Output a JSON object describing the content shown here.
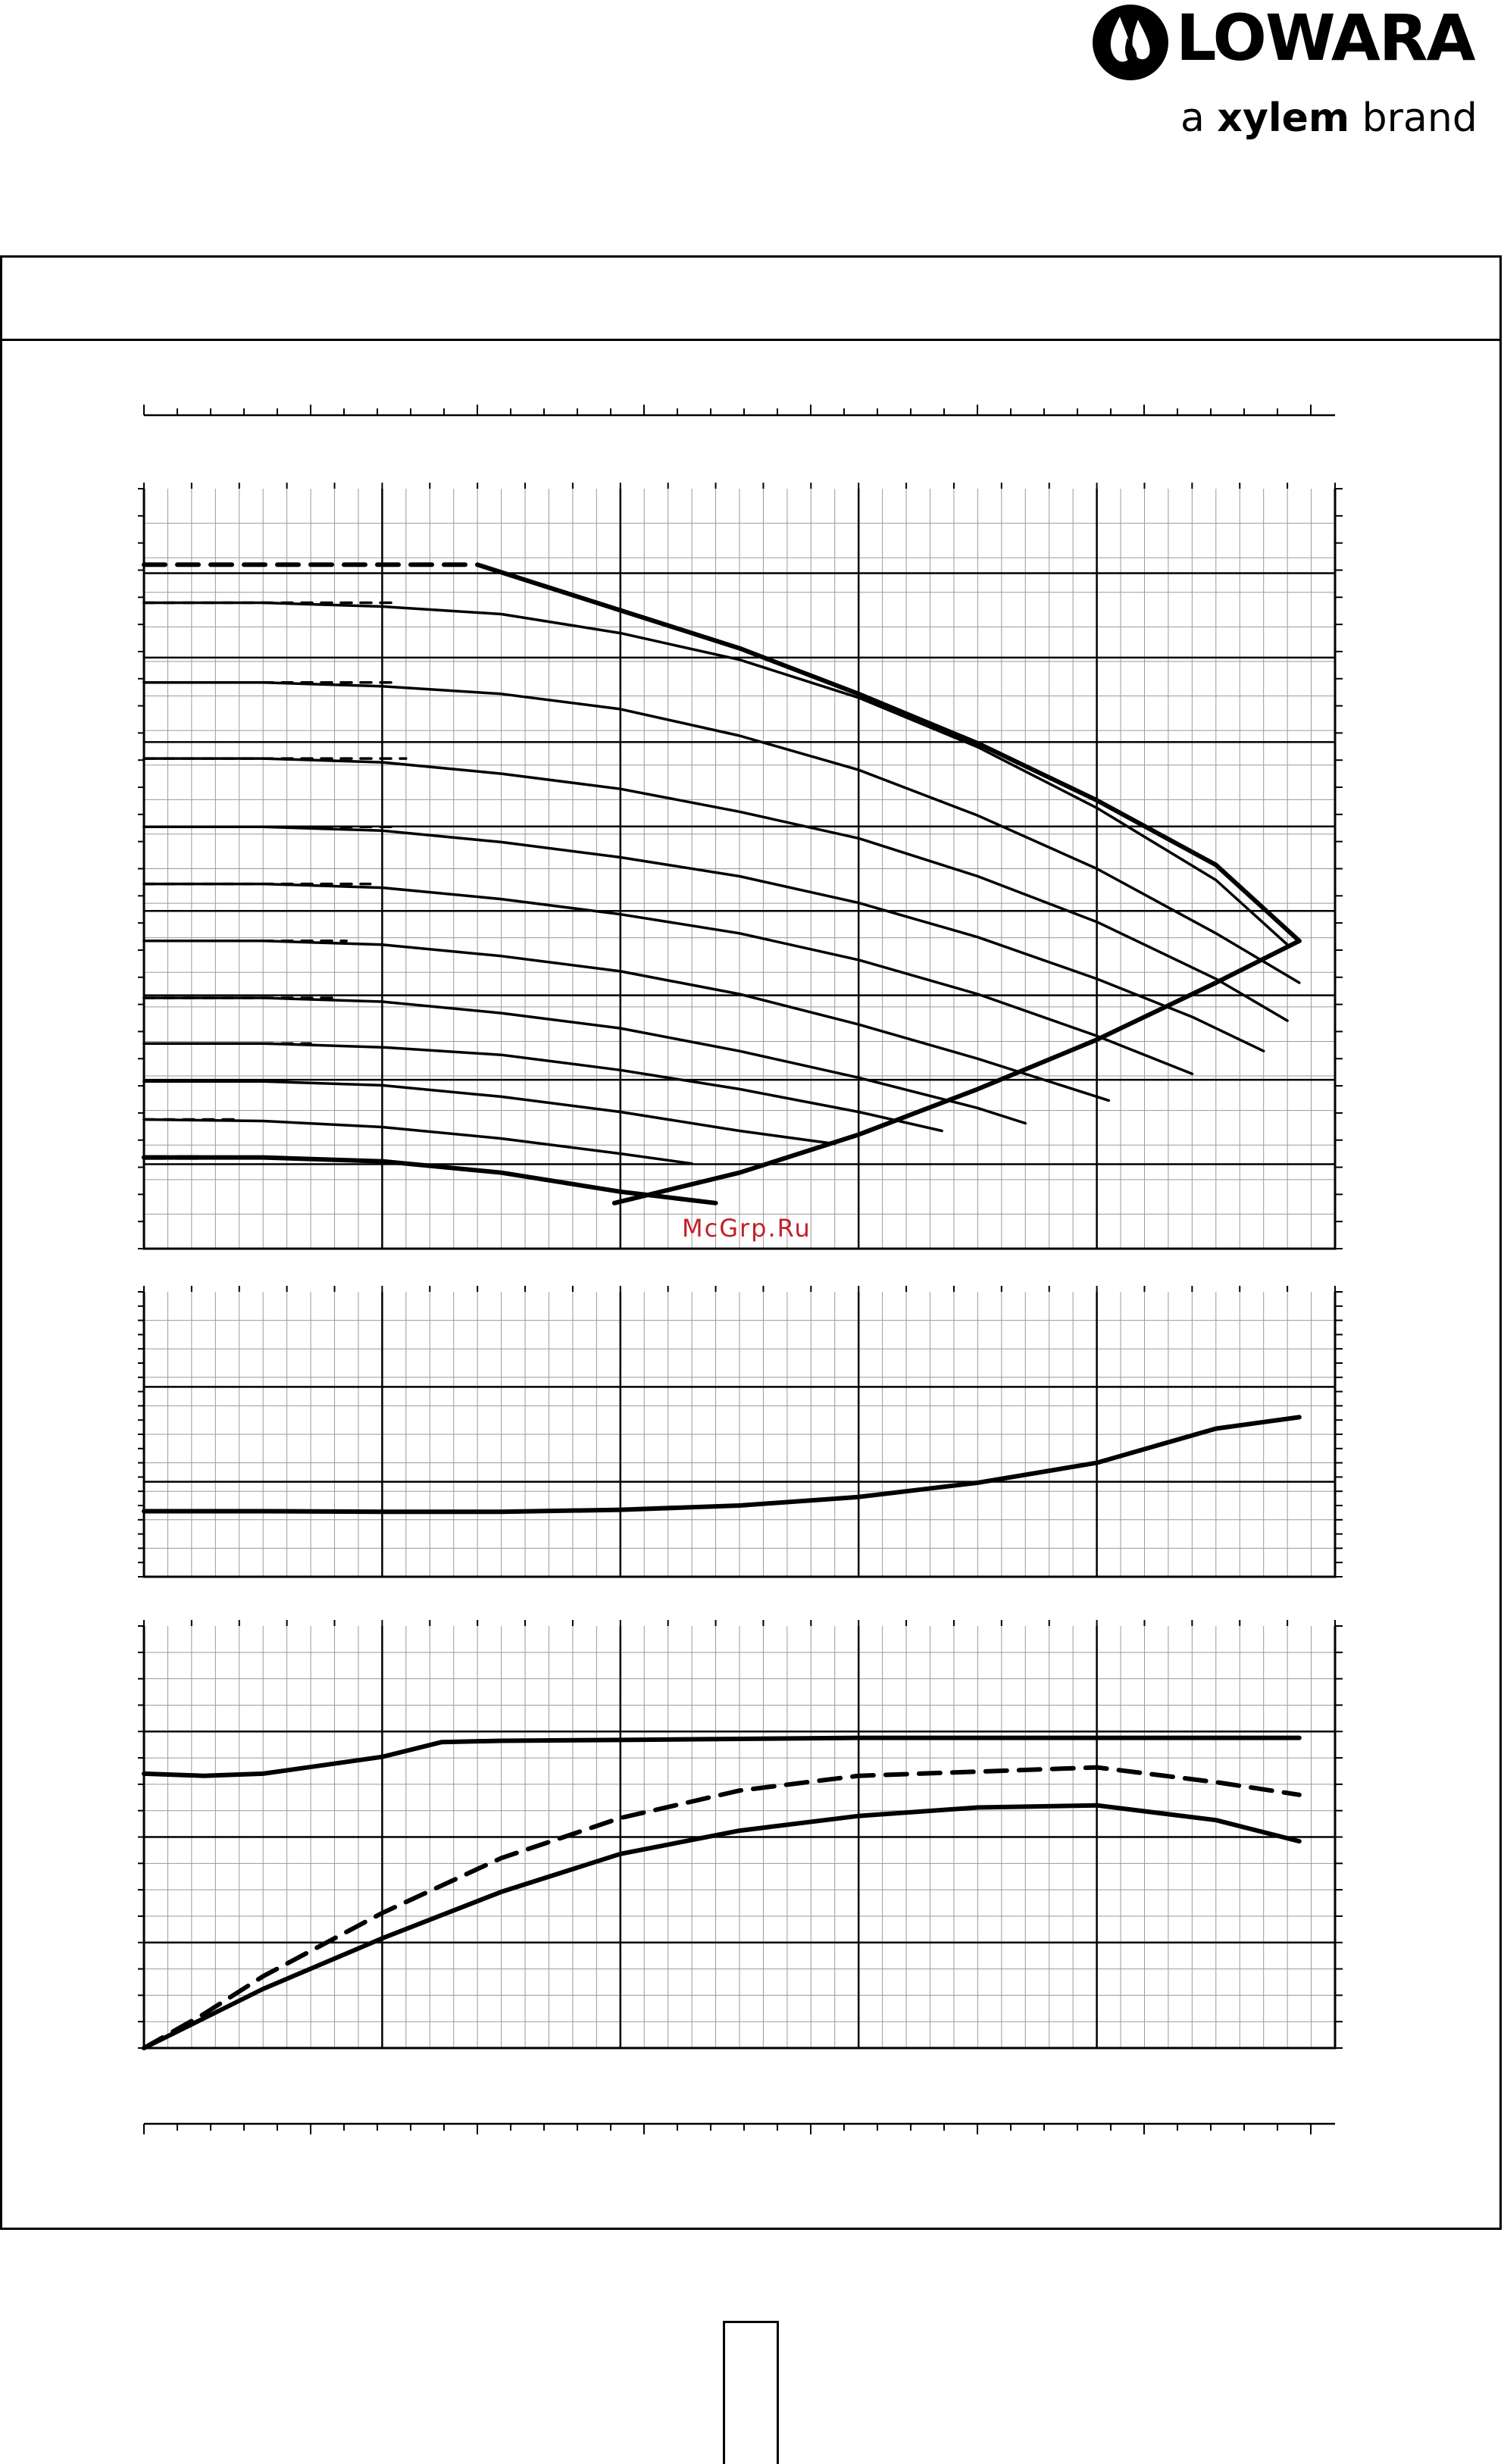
{
  "brand": {
    "name": "LOWARA",
    "tagline_prefix": "a",
    "tagline_bold": "xylem",
    "tagline_suffix": "brand",
    "logo_icon": "water-drop-logo-icon",
    "color": "#000000"
  },
  "watermark": "McGrp.Ru",
  "colors": {
    "line": "#000000",
    "watermark": "#c0202a"
  },
  "chart_data": [
    {
      "name": "head-curves",
      "type": "line",
      "x_range": [
        0,
        100
      ],
      "y_range": [
        0,
        100
      ],
      "grid": true,
      "series": [
        {
          "style": "solid-thick",
          "x": [
            0,
            10,
            20,
            30,
            40,
            48
          ],
          "y": [
            12,
            12,
            11.5,
            10,
            7.5,
            6
          ]
        },
        {
          "style": "dashed-thick",
          "x": [
            0,
            5
          ],
          "y": [
            12,
            12
          ]
        },
        {
          "style": "solid",
          "x": [
            0,
            10,
            20,
            30,
            40,
            46
          ],
          "y": [
            17,
            16.8,
            16,
            14.5,
            12.5,
            11.2
          ]
        },
        {
          "style": "dashed",
          "x": [
            0,
            8
          ],
          "y": [
            17,
            17
          ]
        },
        {
          "style": "solid",
          "x": [
            0,
            10,
            20,
            30,
            40,
            50,
            58
          ],
          "y": [
            22,
            22,
            21.5,
            20,
            18,
            15.5,
            13.8
          ]
        },
        {
          "style": "dashed",
          "x": [
            0,
            12
          ],
          "y": [
            22,
            22
          ]
        },
        {
          "style": "solid",
          "x": [
            0,
            10,
            20,
            30,
            40,
            50,
            60,
            67
          ],
          "y": [
            27,
            27,
            26.5,
            25.5,
            23.5,
            21,
            18,
            15.5
          ]
        },
        {
          "style": "dashed",
          "x": [
            0,
            14
          ],
          "y": [
            27,
            27
          ]
        },
        {
          "style": "solid",
          "x": [
            0,
            10,
            20,
            30,
            40,
            50,
            60,
            70,
            74
          ],
          "y": [
            33,
            33,
            32.5,
            31,
            29,
            26,
            22.5,
            18.5,
            16.5
          ]
        },
        {
          "style": "dashed",
          "x": [
            0,
            16
          ],
          "y": [
            33,
            33
          ]
        },
        {
          "style": "solid",
          "x": [
            0,
            10,
            20,
            30,
            40,
            50,
            60,
            70,
            81
          ],
          "y": [
            40.5,
            40.5,
            40,
            38.5,
            36.5,
            33.5,
            29.5,
            25,
            19.5
          ]
        },
        {
          "style": "dashed",
          "x": [
            0,
            17
          ],
          "y": [
            40.5,
            40.5
          ]
        },
        {
          "style": "solid",
          "x": [
            0,
            10,
            20,
            30,
            40,
            50,
            60,
            70,
            80,
            88
          ],
          "y": [
            48,
            48,
            47.5,
            46,
            44,
            41.5,
            38,
            33.5,
            28,
            23
          ]
        },
        {
          "style": "dashed",
          "x": [
            0,
            19
          ],
          "y": [
            48,
            48
          ]
        },
        {
          "style": "solid",
          "x": [
            0,
            10,
            20,
            30,
            40,
            50,
            60,
            70,
            80,
            88,
            94
          ],
          "y": [
            55.5,
            55.5,
            55,
            53.5,
            51.5,
            49,
            45.5,
            41,
            35.5,
            30.5,
            26
          ]
        },
        {
          "style": "dashed",
          "x": [
            0,
            21
          ],
          "y": [
            55.5,
            55.5
          ]
        },
        {
          "style": "solid",
          "x": [
            0,
            10,
            20,
            30,
            40,
            50,
            60,
            70,
            80,
            90,
            96
          ],
          "y": [
            64.5,
            64.5,
            64,
            62.5,
            60.5,
            57.5,
            54,
            49,
            43,
            35.5,
            30
          ]
        },
        {
          "style": "dashed",
          "x": [
            0,
            22
          ],
          "y": [
            64.5,
            64.5
          ]
        },
        {
          "style": "solid",
          "x": [
            0,
            10,
            20,
            30,
            40,
            50,
            60,
            70,
            80,
            90,
            97
          ],
          "y": [
            74.5,
            74.5,
            74,
            73,
            71,
            67.5,
            63,
            57,
            50,
            41.5,
            35
          ]
        },
        {
          "style": "dashed",
          "x": [
            0,
            21
          ],
          "y": [
            74.5,
            74.5
          ]
        },
        {
          "style": "solid",
          "x": [
            0,
            10,
            20,
            30,
            40,
            50,
            60,
            70,
            80,
            90,
            96
          ],
          "y": [
            85,
            85,
            84.5,
            83.5,
            81,
            77.5,
            72.5,
            66,
            58,
            48.5,
            40
          ]
        },
        {
          "style": "dashed",
          "x": [
            0,
            21
          ],
          "y": [
            85,
            85
          ]
        },
        {
          "style": "solid-thick",
          "x": [
            28,
            40,
            50,
            60,
            70,
            80,
            90,
            97
          ],
          "y": [
            90,
            84,
            79,
            73,
            66.5,
            59,
            50.5,
            40.5
          ]
        },
        {
          "style": "dashed-thick",
          "x": [
            0,
            28
          ],
          "y": [
            90,
            90
          ]
        },
        {
          "style": "solid-thick",
          "x": [
            39.5,
            50,
            60,
            70,
            80,
            90,
            97
          ],
          "y": [
            6,
            10,
            15,
            21,
            27.5,
            35,
            40.5
          ]
        }
      ]
    },
    {
      "name": "npsh-curve",
      "type": "line",
      "x_range": [
        0,
        100
      ],
      "y_range": [
        0,
        100
      ],
      "grid": true,
      "series": [
        {
          "style": "solid-thick",
          "x": [
            0,
            10,
            20,
            30,
            40,
            50,
            60,
            70,
            80,
            90,
            97
          ],
          "y": [
            23,
            23,
            22.8,
            22.8,
            23.5,
            25,
            28,
            33,
            40,
            52,
            56
          ]
        }
      ]
    },
    {
      "name": "power-efficiency",
      "type": "line",
      "x_range": [
        0,
        100
      ],
      "y_range": [
        0,
        100
      ],
      "grid": true,
      "series": [
        {
          "style": "solid-thick",
          "x": [
            0,
            5,
            10,
            15,
            20,
            25,
            30,
            40,
            60,
            80,
            97
          ],
          "y": [
            65,
            64.5,
            65,
            67,
            69,
            72.5,
            72.8,
            73,
            73.5,
            73.5,
            73.5
          ]
        },
        {
          "style": "dashed-thick",
          "x": [
            0,
            5,
            10,
            20,
            30,
            40,
            50,
            60,
            70,
            80,
            90,
            97
          ],
          "y": [
            0,
            8,
            17,
            32,
            45,
            54.5,
            61,
            64.5,
            65.5,
            66.5,
            63,
            60
          ]
        },
        {
          "style": "solid-thick",
          "x": [
            0,
            5,
            10,
            20,
            30,
            40,
            50,
            60,
            70,
            80,
            90,
            97
          ],
          "y": [
            0,
            7,
            14,
            26,
            37,
            46,
            51.5,
            55,
            57,
            57.5,
            54,
            49
          ]
        }
      ]
    }
  ]
}
